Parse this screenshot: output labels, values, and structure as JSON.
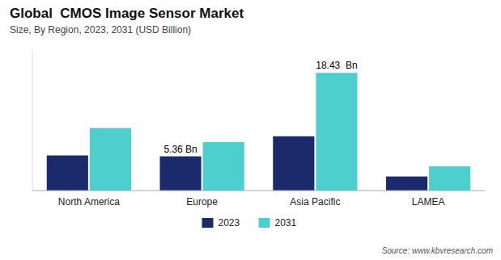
{
  "chart_data": {
    "type": "bar",
    "title": "Global  CMOS Image Sensor Market",
    "subtitle": "Size, By Region, 2023, 2031 (USD Billion)",
    "source": "Source: www.kbvresearch.com",
    "categories": [
      "North America",
      "Europe",
      "Asia Pacific",
      "LAMEA"
    ],
    "series": [
      {
        "name": "2023",
        "color": "#1b2a6b",
        "values": [
          5.5,
          5.36,
          8.5,
          2.2
        ],
        "value_labels": [
          null,
          "5.36 Bn",
          null,
          null
        ]
      },
      {
        "name": "2031",
        "color": "#4dcfce",
        "values": [
          9.8,
          7.6,
          18.43,
          3.8
        ],
        "value_labels": [
          null,
          null,
          "18.43  Bn",
          null
        ]
      }
    ],
    "ylim": [
      0,
      22
    ],
    "grid": false,
    "legend": "bottom",
    "tick_labels": "x"
  }
}
